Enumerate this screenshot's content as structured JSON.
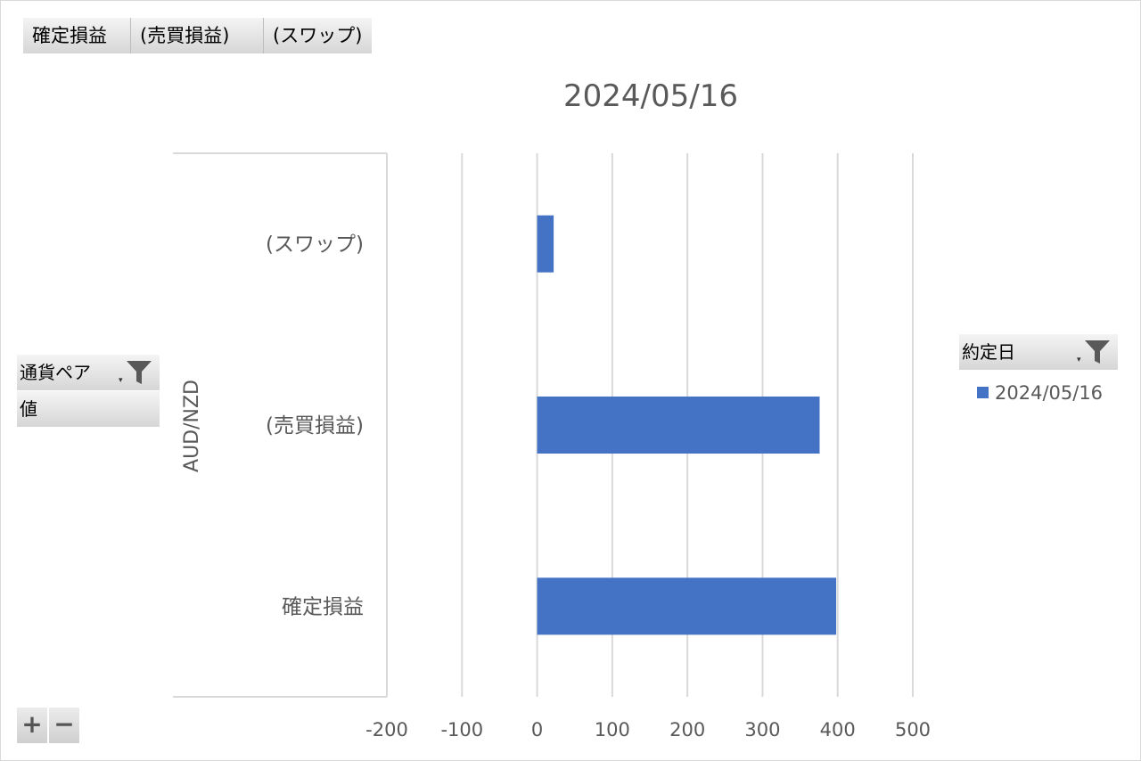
{
  "field_buttons": {
    "values": [
      "確定損益",
      "(売買損益)",
      "(スワップ)"
    ],
    "row_field": "通貨ペア",
    "values_field": "値",
    "legend_field": "約定日"
  },
  "chart_data": {
    "type": "bar",
    "orientation": "horizontal",
    "title": "2024/05/16",
    "group_label": "AUD/NZD",
    "categories": [
      "確定損益",
      "(売買損益)",
      "(スワップ)"
    ],
    "series": [
      {
        "name": "2024/05/16",
        "values": [
          398,
          376,
          22
        ],
        "color": "#4472c4"
      }
    ],
    "xlim": [
      -200,
      500
    ],
    "xticks": [
      "-200",
      "-100",
      "0",
      "100",
      "200",
      "300",
      "400",
      "500"
    ],
    "grid": true,
    "legend": "right"
  },
  "controls": {
    "plus": "+",
    "minus": "−"
  }
}
